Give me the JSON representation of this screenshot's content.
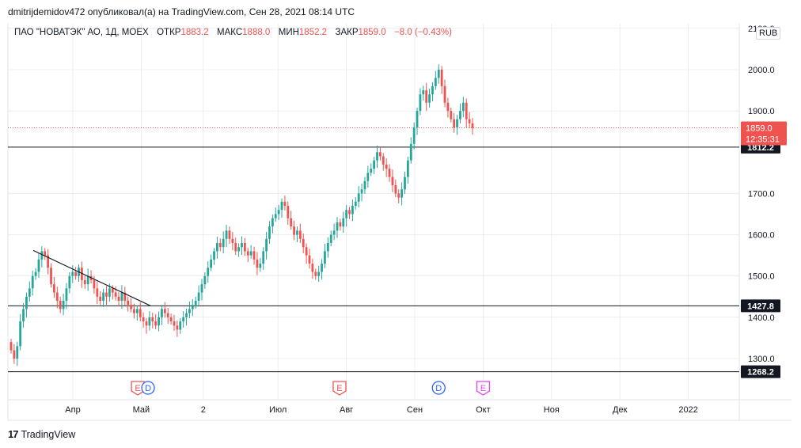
{
  "header": {
    "published": "dmitrijdemidov472 опубликовал(а) на TradingView.com, Сен 28, 2021 08:14 UTC"
  },
  "legend": {
    "symbol": "ПАО \"НОВАТЭК\" АО, 1Д, MOEX",
    "open_label": "ОТКР",
    "open": "1883.2",
    "high_label": "МАКС",
    "high": "1888.0",
    "low_label": "МИН",
    "low": "1852.2",
    "close_label": "ЗАКР",
    "close": "1859.0",
    "change": "−8.0 (−0.43%)"
  },
  "currency": "RUB",
  "footer": {
    "brand": "TradingView"
  },
  "colors": {
    "up": "#26a69a",
    "down": "#ef5350",
    "price_tag": "#ef5350",
    "level_tag": "#131722",
    "grid": "#e0e3eb"
  },
  "chart_data": {
    "type": "candlestick",
    "y_ticks": [
      "2100.0",
      "2000.0",
      "1900.0",
      "1700.0",
      "1600.0",
      "1500.0",
      "1400.0",
      "1300.0"
    ],
    "x_ticks": [
      {
        "label": "Апр",
        "month": 4
      },
      {
        "label": "Май",
        "month": 5
      },
      {
        "label": "2",
        "month": 6
      },
      {
        "label": "Июл",
        "month": 7
      },
      {
        "label": "Авг",
        "month": 8
      },
      {
        "label": "Сен",
        "month": 9
      },
      {
        "label": "Окт",
        "month": 10
      },
      {
        "label": "Ноя",
        "month": 11
      },
      {
        "label": "Дек",
        "month": 12
      },
      {
        "label": "2022",
        "month": 13
      }
    ],
    "horizontal_levels": [
      {
        "value": 1812.2,
        "label": "1812.2"
      },
      {
        "value": 1427.8,
        "label": "1427.8"
      },
      {
        "value": 1268.2,
        "label": "1268.2"
      }
    ],
    "last_price": {
      "value": 1859.0,
      "label": "1859.0",
      "countdown": "12:35:31"
    },
    "trendline": [
      {
        "date": "2021-03-18",
        "value": 1562
      },
      {
        "date": "2021-05-06",
        "value": 1428
      }
    ],
    "events": [
      {
        "type": "E",
        "month": 4.95,
        "color": "#ef5350"
      },
      {
        "type": "D",
        "month": 5.1,
        "color": "#2962ff"
      },
      {
        "type": "E",
        "month": 7.9,
        "color": "#ef5350"
      },
      {
        "type": "D",
        "month": 9.35,
        "color": "#2962ff"
      },
      {
        "type": "E",
        "month": 10.0,
        "color": "#e040fb"
      }
    ],
    "candles_close": [
      1320,
      1300,
      1330,
      1390,
      1420,
      1450,
      1470,
      1500,
      1510,
      1540,
      1560,
      1550,
      1520,
      1480,
      1460,
      1440,
      1420,
      1440,
      1470,
      1500,
      1510,
      1500,
      1520,
      1490,
      1480,
      1500,
      1490,
      1470,
      1450,
      1440,
      1460,
      1450,
      1470,
      1460,
      1450,
      1440,
      1460,
      1440,
      1430,
      1420,
      1410,
      1420,
      1400,
      1390,
      1380,
      1400,
      1390,
      1380,
      1400,
      1420,
      1410,
      1400,
      1390,
      1380,
      1370,
      1390,
      1400,
      1410,
      1420,
      1430,
      1440,
      1460,
      1480,
      1500,
      1520,
      1540,
      1560,
      1580,
      1570,
      1590,
      1610,
      1590,
      1580,
      1560,
      1570,
      1580,
      1560,
      1550,
      1560,
      1540,
      1520,
      1530,
      1560,
      1590,
      1620,
      1640,
      1650,
      1660,
      1680,
      1670,
      1640,
      1620,
      1600,
      1610,
      1590,
      1570,
      1550,
      1530,
      1510,
      1500,
      1510,
      1530,
      1560,
      1580,
      1600,
      1610,
      1630,
      1620,
      1640,
      1660,
      1650,
      1670,
      1680,
      1700,
      1710,
      1730,
      1750,
      1760,
      1780,
      1800,
      1790,
      1770,
      1760,
      1740,
      1720,
      1700,
      1690,
      1710,
      1740,
      1780,
      1820,
      1860,
      1900,
      1940,
      1950,
      1920,
      1940,
      1960,
      1980,
      2000,
      1960,
      1920,
      1900,
      1880,
      1860,
      1880,
      1900,
      1920,
      1880,
      1870,
      1859
    ],
    "start_date": "2021-03-01",
    "y_range": [
      1260,
      2110
    ]
  }
}
